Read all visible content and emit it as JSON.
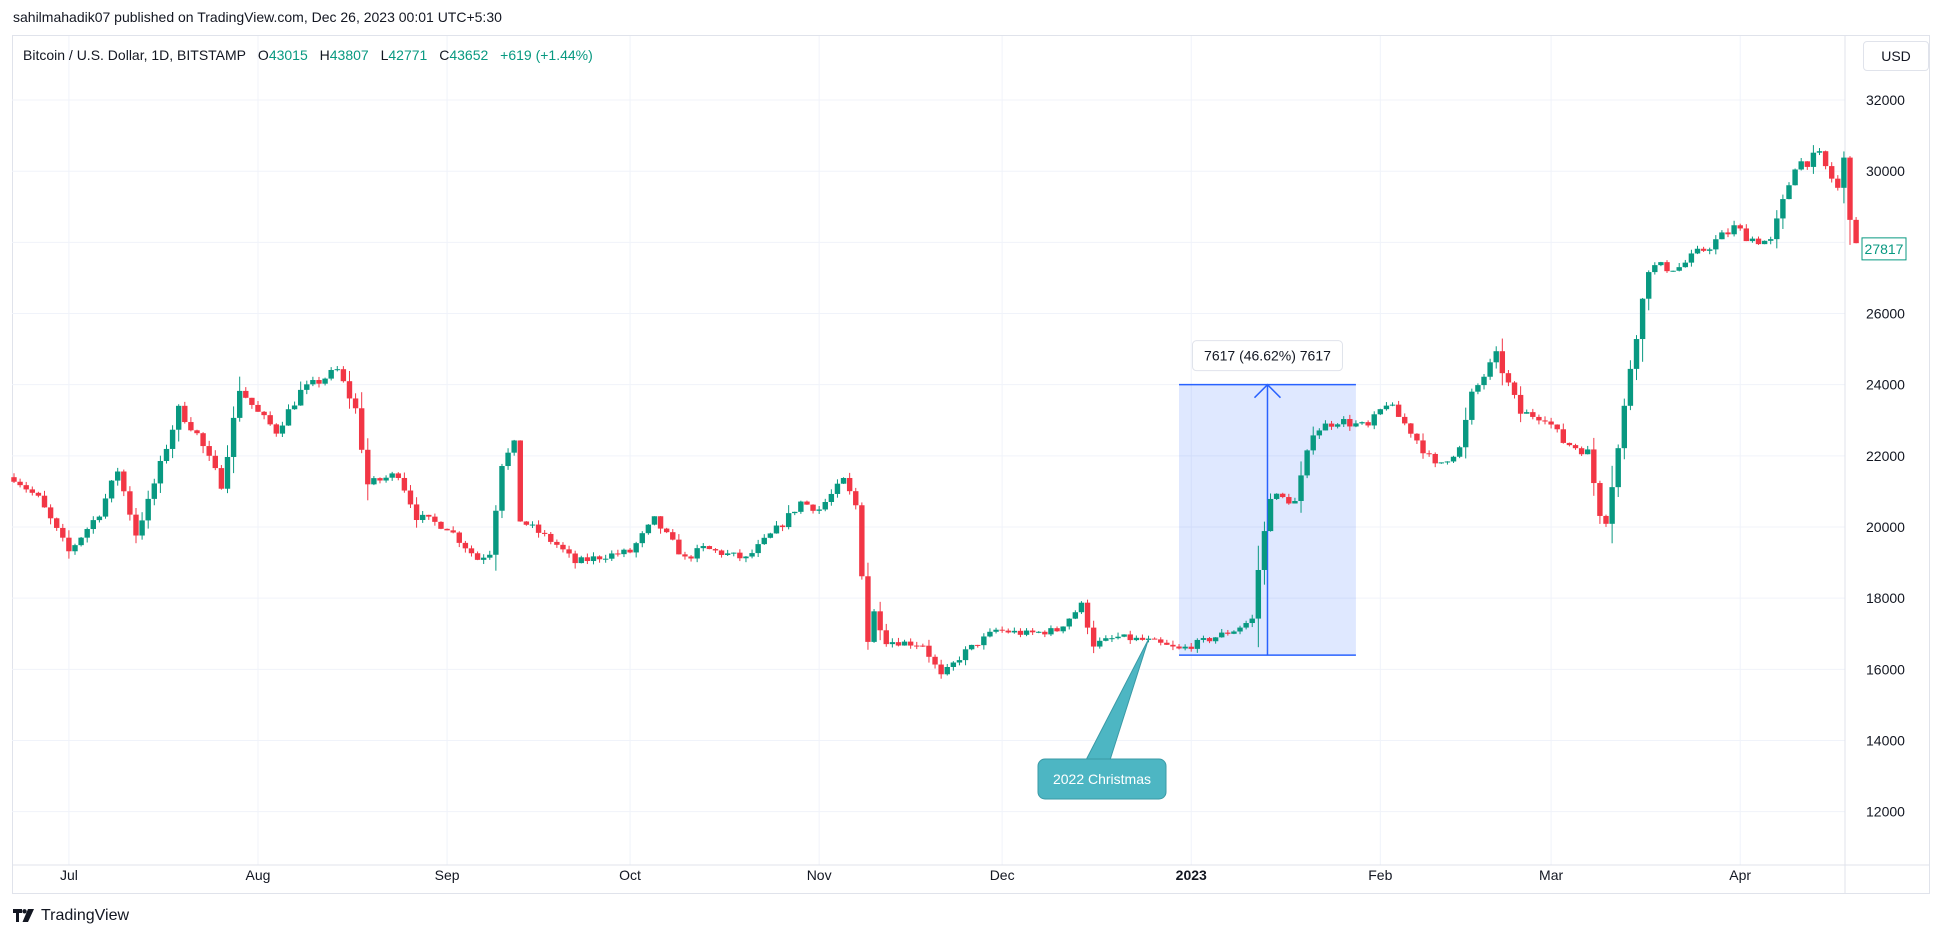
{
  "publisher": "sahilmahadik07 published on TradingView.com, Dec 26, 2023 00:01 UTC+5:30",
  "legend": {
    "symbol": "Bitcoin / U.S. Dollar, 1D, BITSTAMP",
    "open_label": "O",
    "open": "43015",
    "high_label": "H",
    "high": "43807",
    "low_label": "L",
    "low": "42771",
    "close_label": "C",
    "close": "43652",
    "change": "+619 (+1.44%)"
  },
  "currency": "USD",
  "brand": "TradingView",
  "colors": {
    "up": "#089981",
    "down": "#f23645",
    "measure": "#2962ff",
    "callout": "#4db6c3"
  },
  "chart_data": {
    "type": "candlestick",
    "ylim": [
      10500,
      33800
    ],
    "y_ticks": [
      "12000",
      "14000",
      "16000",
      "18000",
      "20000",
      "22000",
      "24000",
      "26000",
      "28000",
      "30000",
      "32000"
    ],
    "x_ticks": [
      {
        "label": "Jul",
        "date": "2022-07-01",
        "bold": false
      },
      {
        "label": "Aug",
        "date": "2022-08-01",
        "bold": false
      },
      {
        "label": "Sep",
        "date": "2022-09-01",
        "bold": false
      },
      {
        "label": "Oct",
        "date": "2022-10-01",
        "bold": false
      },
      {
        "label": "Nov",
        "date": "2022-11-01",
        "bold": false
      },
      {
        "label": "Dec",
        "date": "2022-12-01",
        "bold": false
      },
      {
        "label": "2023",
        "date": "2023-01-01",
        "bold": true
      },
      {
        "label": "Feb",
        "date": "2023-02-01",
        "bold": false
      },
      {
        "label": "Mar",
        "date": "2023-03-01",
        "bold": false
      },
      {
        "label": "Apr",
        "date": "2023-04-01",
        "bold": false
      }
    ],
    "x_range": [
      "2022-06-22",
      "2023-04-19"
    ],
    "last_price": "27817",
    "series_close_anchors": [
      [
        "2022-06-22",
        21400
      ],
      [
        "2022-06-26",
        20800
      ],
      [
        "2022-07-01",
        19300
      ],
      [
        "2022-07-06",
        20400
      ],
      [
        "2022-07-09",
        21600
      ],
      [
        "2022-07-12",
        19800
      ],
      [
        "2022-07-14",
        20700
      ],
      [
        "2022-07-19",
        23300
      ],
      [
        "2022-07-22",
        22600
      ],
      [
        "2022-07-26",
        21200
      ],
      [
        "2022-07-29",
        23900
      ],
      [
        "2022-08-01",
        23200
      ],
      [
        "2022-08-04",
        22700
      ],
      [
        "2022-08-08",
        23800
      ],
      [
        "2022-08-14",
        24400
      ],
      [
        "2022-08-17",
        23300
      ],
      [
        "2022-08-19",
        21200
      ],
      [
        "2022-08-24",
        21500
      ],
      [
        "2022-08-27",
        20300
      ],
      [
        "2022-09-01",
        20000
      ],
      [
        "2022-09-06",
        19100
      ],
      [
        "2022-09-08",
        19300
      ],
      [
        "2022-09-10",
        21800
      ],
      [
        "2022-09-12",
        22300
      ],
      [
        "2022-09-13",
        20200
      ],
      [
        "2022-09-19",
        19500
      ],
      [
        "2022-09-22",
        19000
      ],
      [
        "2022-09-27",
        19200
      ],
      [
        "2022-10-01",
        19300
      ],
      [
        "2022-10-05",
        20200
      ],
      [
        "2022-10-10",
        19100
      ],
      [
        "2022-10-13",
        19400
      ],
      [
        "2022-10-20",
        19100
      ],
      [
        "2022-10-26",
        20100
      ],
      [
        "2022-10-29",
        20700
      ],
      [
        "2022-11-01",
        20500
      ],
      [
        "2022-11-05",
        21300
      ],
      [
        "2022-11-07",
        20600
      ],
      [
        "2022-11-09",
        16800
      ],
      [
        "2022-11-10",
        17600
      ],
      [
        "2022-11-12",
        16800
      ],
      [
        "2022-11-18",
        16700
      ],
      [
        "2022-11-21",
        15800
      ],
      [
        "2022-11-25",
        16500
      ],
      [
        "2022-11-30",
        17100
      ],
      [
        "2022-12-05",
        17000
      ],
      [
        "2022-12-10",
        17100
      ],
      [
        "2022-12-14",
        17800
      ],
      [
        "2022-12-16",
        16700
      ],
      [
        "2022-12-20",
        16900
      ],
      [
        "2022-12-25",
        16800
      ],
      [
        "2022-12-30",
        16550
      ],
      [
        "2023-01-04",
        16850
      ],
      [
        "2023-01-08",
        17100
      ],
      [
        "2023-01-11",
        17400
      ],
      [
        "2023-01-12",
        18800
      ],
      [
        "2023-01-14",
        20900
      ],
      [
        "2023-01-18",
        20700
      ],
      [
        "2023-01-21",
        22700
      ],
      [
        "2023-01-25",
        23000
      ],
      [
        "2023-01-30",
        22800
      ],
      [
        "2023-02-02",
        23500
      ],
      [
        "2023-02-06",
        22700
      ],
      [
        "2023-02-10",
        21700
      ],
      [
        "2023-02-14",
        22200
      ],
      [
        "2023-02-16",
        23700
      ],
      [
        "2023-02-20",
        24800
      ],
      [
        "2023-02-24",
        23200
      ],
      [
        "2023-02-28",
        23100
      ],
      [
        "2023-03-03",
        22400
      ],
      [
        "2023-03-07",
        22100
      ],
      [
        "2023-03-09",
        20400
      ],
      [
        "2023-03-10",
        20200
      ],
      [
        "2023-03-12",
        22200
      ],
      [
        "2023-03-14",
        24500
      ],
      [
        "2023-03-17",
        27300
      ],
      [
        "2023-03-22",
        27300
      ],
      [
        "2023-03-26",
        27800
      ],
      [
        "2023-03-31",
        28400
      ],
      [
        "2023-04-03",
        28100
      ],
      [
        "2023-04-06",
        28000
      ],
      [
        "2023-04-10",
        30200
      ],
      [
        "2023-04-14",
        30400
      ],
      [
        "2023-04-17",
        29500
      ],
      [
        "2023-04-18",
        30300
      ],
      [
        "2023-04-19",
        28800
      ],
      [
        "2023-04-20",
        27817
      ]
    ],
    "annotations": {
      "measure": {
        "from_date": "2022-12-30",
        "to_date": "2023-01-28",
        "low": 16400,
        "high": 24000,
        "label": "7617 (46.62%) 7617"
      },
      "callout": {
        "text": "2022 Christmas",
        "date": "2022-12-25",
        "price": 16850
      }
    }
  }
}
